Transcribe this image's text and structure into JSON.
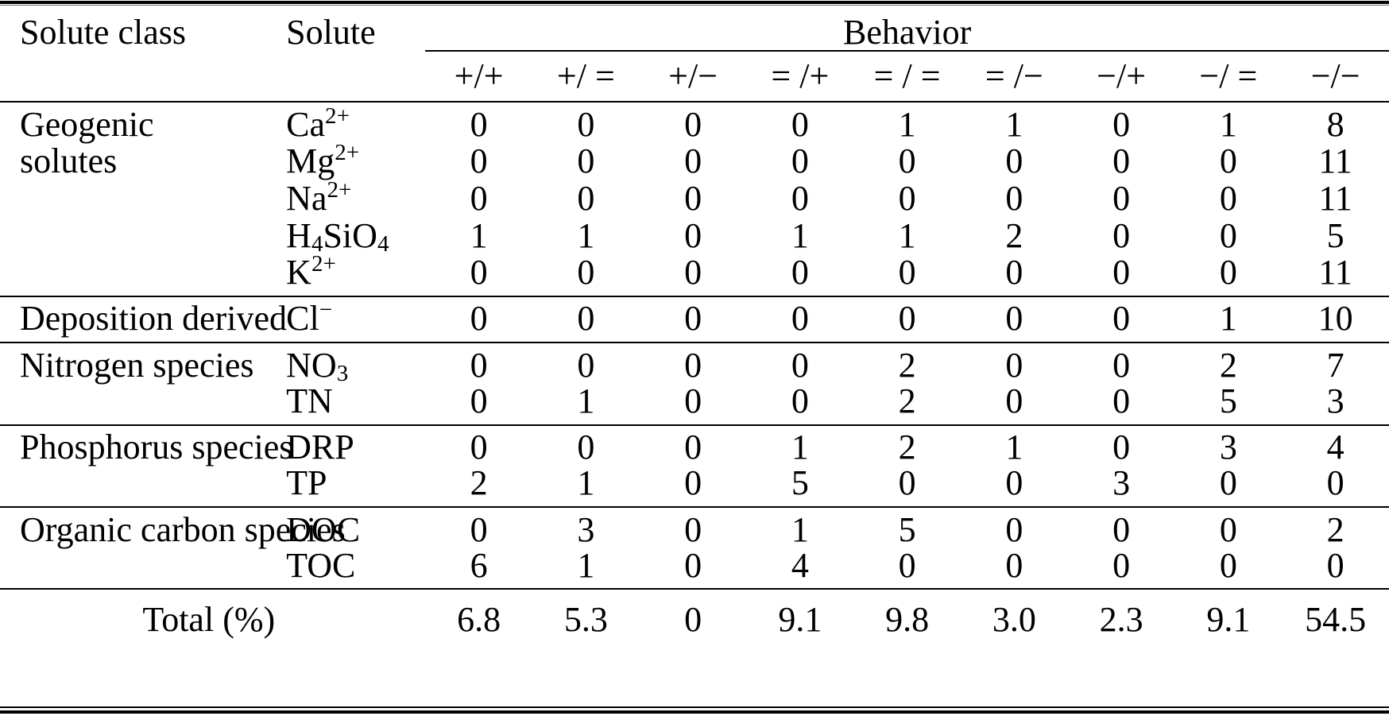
{
  "table": {
    "headers": {
      "solute_class": "Solute class",
      "solute": "Solute",
      "behavior": "Behavior"
    },
    "behavior_columns": [
      "+/+",
      "+/ =",
      "+/−",
      "= /+",
      "= / =",
      "= /−",
      "−/+",
      "−/ =",
      "−/−"
    ],
    "groups": [
      {
        "solute_class_lines": [
          "Geogenic",
          "solutes"
        ],
        "rows": [
          {
            "solute": [
              [
                "t",
                "Ca"
              ],
              [
                "sup",
                "2+"
              ]
            ],
            "values": [
              "0",
              "0",
              "0",
              "0",
              "1",
              "1",
              "0",
              "1",
              "8"
            ]
          },
          {
            "solute": [
              [
                "t",
                "Mg"
              ],
              [
                "sup",
                "2+"
              ]
            ],
            "values": [
              "0",
              "0",
              "0",
              "0",
              "0",
              "0",
              "0",
              "0",
              "11"
            ]
          },
          {
            "solute": [
              [
                "t",
                "Na"
              ],
              [
                "sup",
                "2+"
              ]
            ],
            "values": [
              "0",
              "0",
              "0",
              "0",
              "0",
              "0",
              "0",
              "0",
              "11"
            ]
          },
          {
            "solute": [
              [
                "t",
                "H"
              ],
              [
                "sub",
                "4"
              ],
              [
                "t",
                "SiO"
              ],
              [
                "sub",
                "4"
              ]
            ],
            "values": [
              "1",
              "1",
              "0",
              "1",
              "1",
              "2",
              "0",
              "0",
              "5"
            ]
          },
          {
            "solute": [
              [
                "t",
                "K"
              ],
              [
                "sup",
                "2+"
              ]
            ],
            "values": [
              "0",
              "0",
              "0",
              "0",
              "0",
              "0",
              "0",
              "0",
              "11"
            ]
          }
        ]
      },
      {
        "solute_class_lines": [
          "Deposition derived"
        ],
        "rows": [
          {
            "solute": [
              [
                "t",
                "Cl"
              ],
              [
                "sup",
                "−"
              ]
            ],
            "values": [
              "0",
              "0",
              "0",
              "0",
              "0",
              "0",
              "0",
              "1",
              "10"
            ]
          }
        ]
      },
      {
        "solute_class_lines": [
          "Nitrogen species"
        ],
        "rows": [
          {
            "solute": [
              [
                "t",
                "NO"
              ],
              [
                "sub",
                "3"
              ]
            ],
            "values": [
              "0",
              "0",
              "0",
              "0",
              "2",
              "0",
              "0",
              "2",
              "7"
            ]
          },
          {
            "solute": [
              [
                "t",
                "TN"
              ]
            ],
            "values": [
              "0",
              "1",
              "0",
              "0",
              "2",
              "0",
              "0",
              "5",
              "3"
            ]
          }
        ]
      },
      {
        "solute_class_lines": [
          "Phosphorus species"
        ],
        "rows": [
          {
            "solute": [
              [
                "t",
                "DRP"
              ]
            ],
            "values": [
              "0",
              "0",
              "0",
              "1",
              "2",
              "1",
              "0",
              "3",
              "4"
            ]
          },
          {
            "solute": [
              [
                "t",
                "TP"
              ]
            ],
            "values": [
              "2",
              "1",
              "0",
              "5",
              "0",
              "0",
              "3",
              "0",
              "0"
            ]
          }
        ]
      },
      {
        "solute_class_lines": [
          "Organic carbon species"
        ],
        "rows": [
          {
            "solute": [
              [
                "t",
                "DOC"
              ]
            ],
            "values": [
              "0",
              "3",
              "0",
              "1",
              "5",
              "0",
              "0",
              "0",
              "2"
            ]
          },
          {
            "solute": [
              [
                "t",
                "TOC"
              ]
            ],
            "values": [
              "6",
              "1",
              "0",
              "4",
              "0",
              "0",
              "0",
              "0",
              "0"
            ]
          }
        ]
      }
    ],
    "total_row": {
      "label": "Total (%)",
      "values": [
        "6.8",
        "5.3",
        "0",
        "9.1",
        "9.8",
        "3.0",
        "2.3",
        "9.1",
        "54.5"
      ]
    }
  }
}
